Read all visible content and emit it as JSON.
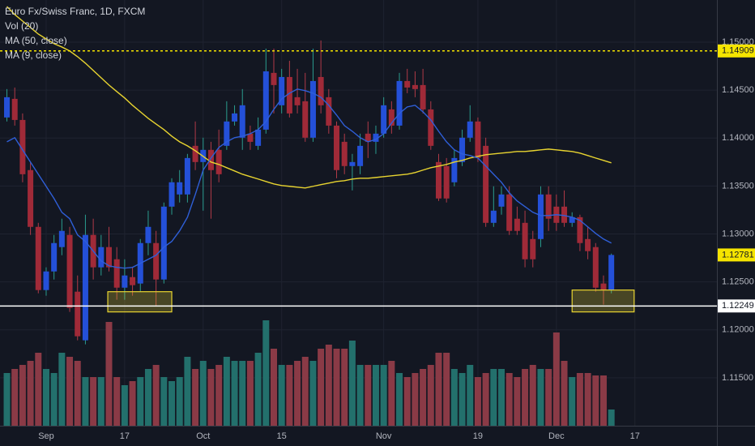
{
  "chart_data": {
    "type": "candlestick",
    "title": "Euro Fx/Swiss Franc, 1D, FXCM",
    "xlim": [
      -0.88,
      90.45
    ],
    "xticks": [
      {
        "value": 5,
        "label": "Sep"
      },
      {
        "value": 15,
        "label": "17"
      },
      {
        "value": 25,
        "label": "Oct"
      },
      {
        "value": 35,
        "label": "15"
      },
      {
        "value": 48,
        "label": "Nov"
      },
      {
        "value": 60,
        "label": "19"
      },
      {
        "value": 70,
        "label": "Dec"
      },
      {
        "value": 80,
        "label": "17"
      }
    ],
    "ylim": [
      1.11,
      1.1544
    ],
    "yticks": [
      {
        "value": 1.15,
        "label": "1.15000"
      },
      {
        "value": 1.145,
        "label": "1.14500"
      },
      {
        "value": 1.14,
        "label": "1.14000"
      },
      {
        "value": 1.135,
        "label": "1.13500"
      },
      {
        "value": 1.13,
        "label": "1.13000"
      },
      {
        "value": 1.125,
        "label": "1.12500"
      },
      {
        "value": 1.12,
        "label": "1.12000"
      },
      {
        "value": 1.115,
        "label": "1.11500"
      }
    ],
    "grid": true,
    "candles": {
      "up_color": "#2450d8",
      "down_color": "#a02a38",
      "up_wick": "#2a9d8f",
      "down_wick": "#b03a48",
      "open": [
        1.14215,
        1.14409,
        1.14189,
        1.13666,
        1.13074,
        1.12415,
        1.12609,
        1.12863,
        1.1299,
        1.12398,
        1.11891,
        1.1299,
        1.12652,
        1.12863,
        1.12736,
        1.1244,
        1.1255,
        1.12483,
        1.12905,
        1.12905,
        1.12525,
        1.13285,
        1.13412,
        1.13412,
        1.13919,
        1.1375,
        1.13877,
        1.13877,
        1.13919,
        1.14173,
        1.14004,
        1.14046,
        1.13919,
        1.14088,
        1.1468,
        1.14342,
        1.14637,
        1.14426,
        1.14384,
        1.14004,
        1.14637,
        1.14426,
        1.1413,
        1.13961,
        1.13708,
        1.13708,
        1.14046,
        1.13961,
        1.14046,
        1.14299,
        1.1413,
        1.14595,
        1.14553,
        1.14553,
        1.14299,
        1.1375,
        1.13708,
        1.13539,
        1.1375,
        1.14004,
        1.14173,
        1.13919,
        1.13116,
        1.13285,
        1.13412,
        1.13159,
        1.13116,
        1.12947,
        1.12947,
        1.13412,
        1.13285,
        1.13285,
        1.13116,
        1.13175,
        1.12947,
        1.12863,
        1.12483,
        1.12415
      ],
      "high": [
        1.14511,
        1.14527,
        1.14257,
        1.1375,
        1.13116,
        1.12652,
        1.1299,
        1.13159,
        1.13074,
        1.12567,
        1.13201,
        1.13159,
        1.1299,
        1.13074,
        1.12863,
        1.12736,
        1.12652,
        1.12947,
        1.13243,
        1.13032,
        1.13328,
        1.13581,
        1.13666,
        1.13835,
        1.14173,
        1.14004,
        1.13961,
        1.14088,
        1.14384,
        1.14342,
        1.14511,
        1.1413,
        1.14215,
        1.14933,
        1.14933,
        1.14722,
        1.14806,
        1.14722,
        1.1468,
        1.14933,
        1.15018,
        1.14511,
        1.14173,
        1.14046,
        1.13835,
        1.14046,
        1.14173,
        1.1413,
        1.14426,
        1.14384,
        1.1468,
        1.14722,
        1.14696,
        1.14722,
        1.14384,
        1.13835,
        1.13792,
        1.13877,
        1.14088,
        1.14342,
        1.14215,
        1.14004,
        1.13497,
        1.13497,
        1.13497,
        1.13285,
        1.13243,
        1.13032,
        1.13497,
        1.13497,
        1.13412,
        1.13454,
        1.13226,
        1.13201,
        1.13074,
        1.12905,
        1.12567,
        1.12795
      ],
      "low": [
        1.14173,
        1.1413,
        1.13539,
        1.1299,
        1.12381,
        1.12356,
        1.12525,
        1.12778,
        1.12187,
        1.11891,
        1.11849,
        1.12525,
        1.12567,
        1.12609,
        1.12314,
        1.12314,
        1.12356,
        1.12398,
        1.12778,
        1.12246,
        1.12483,
        1.13201,
        1.13328,
        1.13328,
        1.13666,
        1.13243,
        1.13159,
        1.13539,
        1.13877,
        1.1413,
        1.13877,
        1.13877,
        1.13877,
        1.14046,
        1.14257,
        1.14257,
        1.14215,
        1.14257,
        1.13961,
        1.13961,
        1.14257,
        1.14046,
        1.13581,
        1.13623,
        1.13454,
        1.13623,
        1.13792,
        1.13835,
        1.14004,
        1.14046,
        1.14088,
        1.14468,
        1.14426,
        1.14257,
        1.13877,
        1.13344,
        1.13328,
        1.13497,
        1.13708,
        1.13961,
        1.1375,
        1.13074,
        1.13074,
        1.13201,
        1.1299,
        1.1299,
        1.12652,
        1.12652,
        1.12863,
        1.13032,
        1.13032,
        1.13074,
        1.13074,
        1.12821,
        1.12736,
        1.12398,
        1.12263,
        1.12381
      ],
      "close": [
        1.14426,
        1.14189,
        1.13623,
        1.13074,
        1.12415,
        1.12609,
        1.12905,
        1.13032,
        1.12229,
        1.11933,
        1.1299,
        1.12652,
        1.12863,
        1.12652,
        1.1244,
        1.12567,
        1.12466,
        1.12905,
        1.13074,
        1.12525,
        1.13285,
        1.13539,
        1.13539,
        1.13792,
        1.1375,
        1.13877,
        1.13666,
        1.13623,
        1.14173,
        1.14257,
        1.14342,
        1.13961,
        1.14088,
        1.14696,
        1.14553,
        1.14637,
        1.14257,
        1.14342,
        1.14004,
        1.14595,
        1.14342,
        1.1413,
        1.13666,
        1.13708,
        1.1375,
        1.13919,
        1.13961,
        1.14046,
        1.14342,
        1.1413,
        1.14595,
        1.14527,
        1.14511,
        1.14299,
        1.13919,
        1.1337,
        1.1337,
        1.13792,
        1.14004,
        1.14173,
        1.13792,
        1.13116,
        1.13243,
        1.13412,
        1.13032,
        1.13032,
        1.12736,
        1.12736,
        1.13412,
        1.13159,
        1.13116,
        1.13116,
        1.13175,
        1.12905,
        1.12821,
        1.1244,
        1.12415,
        1.12781
      ]
    },
    "volume": {
      "name": "Vol (20)",
      "up_color": "#23706c",
      "down_color": "#8a3a46",
      "ylim": [
        0,
        525
      ],
      "values": [
        65,
        70,
        75,
        80,
        90,
        70,
        65,
        90,
        85,
        80,
        60,
        60,
        60,
        128,
        60,
        50,
        55,
        60,
        70,
        75,
        60,
        55,
        60,
        85,
        70,
        80,
        70,
        75,
        85,
        80,
        80,
        80,
        90,
        130,
        95,
        75,
        75,
        80,
        85,
        80,
        95,
        100,
        95,
        95,
        105,
        75,
        75,
        75,
        75,
        80,
        65,
        60,
        65,
        70,
        75,
        90,
        90,
        70,
        65,
        75,
        60,
        65,
        70,
        70,
        65,
        60,
        70,
        75,
        70,
        70,
        115,
        80,
        60,
        65,
        65,
        62,
        62,
        20
      ]
    },
    "series": [
      {
        "name": "MA (50, close)",
        "color": "#e8d430",
        "values": [
          1.15372,
          1.15288,
          1.1522,
          1.15153,
          1.15085,
          1.15034,
          1.14984,
          1.1495,
          1.14908,
          1.14849,
          1.14781,
          1.14705,
          1.14629,
          1.14553,
          1.14485,
          1.14418,
          1.14342,
          1.14274,
          1.14206,
          1.14147,
          1.14088,
          1.1402,
          1.13961,
          1.13919,
          1.13868,
          1.13809,
          1.1375,
          1.13725,
          1.13691,
          1.13657,
          1.13623,
          1.13598,
          1.13573,
          1.13547,
          1.13522,
          1.13505,
          1.13497,
          1.13488,
          1.1348,
          1.13497,
          1.13514,
          1.1353,
          1.13547,
          1.13556,
          1.13573,
          1.13581,
          1.13581,
          1.13589,
          1.13598,
          1.13606,
          1.13615,
          1.13623,
          1.1364,
          1.13666,
          1.13691,
          1.13708,
          1.13725,
          1.1375,
          1.13767,
          1.13792,
          1.13809,
          1.13826,
          1.13835,
          1.13843,
          1.13851,
          1.1386,
          1.1386,
          1.13868,
          1.13877,
          1.13885,
          1.13877,
          1.13868,
          1.1386,
          1.13843,
          1.13818,
          1.13792,
          1.13767,
          1.13742
        ]
      },
      {
        "name": "MA (9, close)",
        "color": "#2f5fd8",
        "values": [
          1.13961,
          1.14004,
          1.13877,
          1.1375,
          1.13623,
          1.13497,
          1.1337,
          1.13226,
          1.13159,
          1.1299,
          1.12922,
          1.12821,
          1.12719,
          1.12668,
          1.12652,
          1.12643,
          1.12652,
          1.12694,
          1.12736,
          1.12778,
          1.12863,
          1.12922,
          1.13032,
          1.13175,
          1.13412,
          1.13666,
          1.13792,
          1.13902,
          1.13961,
          1.14004,
          1.1402,
          1.14046,
          1.14088,
          1.14173,
          1.14299,
          1.14409,
          1.14468,
          1.14511,
          1.14494,
          1.14468,
          1.14426,
          1.14342,
          1.1424,
          1.1413,
          1.14071,
          1.14004,
          1.13961,
          1.13987,
          1.14046,
          1.14156,
          1.14257,
          1.14325,
          1.14342,
          1.14274,
          1.14189,
          1.14071,
          1.13961,
          1.13877,
          1.13835,
          1.13818,
          1.13792,
          1.13708,
          1.13623,
          1.13539,
          1.13429,
          1.13344,
          1.13285,
          1.13226,
          1.13192,
          1.13192,
          1.13201,
          1.13192,
          1.13175,
          1.13142,
          1.13074,
          1.13006,
          1.12947,
          1.12905
        ]
      }
    ],
    "price_lines": [
      {
        "value": 1.14909,
        "label": "1.14909",
        "color": "#f5e400",
        "style": "dashed"
      },
      {
        "value": 1.12781,
        "label": "1.12781",
        "color": "#f5e400",
        "style": "none"
      },
      {
        "value": 1.12249,
        "label": "1.12249",
        "color": "#ffffff",
        "style": "solid"
      }
    ],
    "zones": [
      {
        "x": [
          12.85,
          21.0
        ],
        "y": [
          1.12187,
          1.12398
        ],
        "color": "#e8d430"
      },
      {
        "x": [
          72.0,
          79.9
        ],
        "y": [
          1.12187,
          1.12415
        ],
        "color": "#e8d430"
      }
    ]
  }
}
